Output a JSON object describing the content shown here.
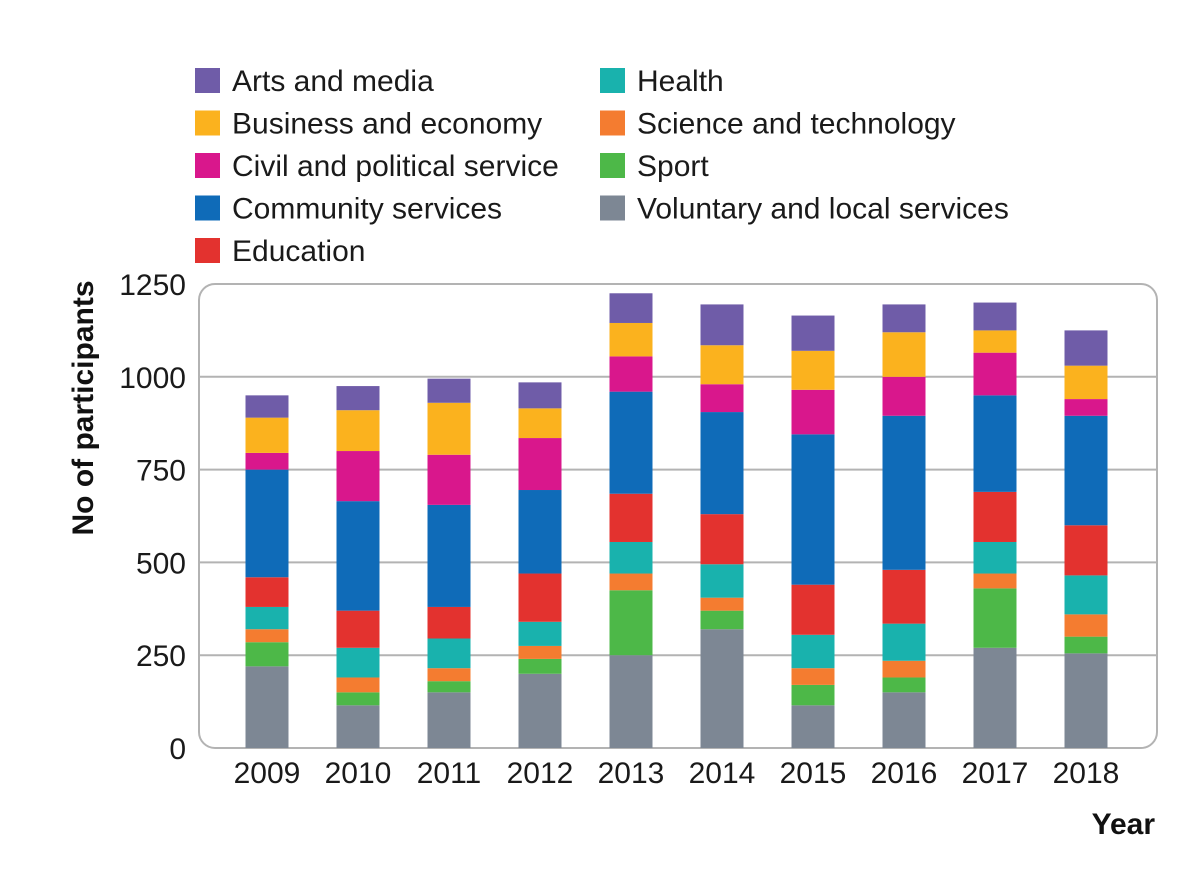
{
  "chart_data": {
    "type": "bar",
    "stacked": true,
    "categories": [
      "2009",
      "2010",
      "2011",
      "2012",
      "2013",
      "2014",
      "2015",
      "2016",
      "2017",
      "2018"
    ],
    "xlabel": "Year",
    "ylabel": "No of participants",
    "ylim": [
      0,
      1250
    ],
    "yticks": [
      0,
      250,
      500,
      750,
      1000,
      1250
    ],
    "grid": true,
    "legend_position": "top",
    "series": [
      {
        "name": "Voluntary and local services",
        "color": "#7d8794",
        "values": [
          220,
          115,
          150,
          200,
          250,
          320,
          115,
          150,
          270,
          255
        ]
      },
      {
        "name": "Sport",
        "color": "#4db848",
        "values": [
          65,
          35,
          30,
          40,
          175,
          50,
          55,
          40,
          160,
          45
        ]
      },
      {
        "name": "Science and technology",
        "color": "#f47c30",
        "values": [
          35,
          40,
          35,
          35,
          45,
          35,
          45,
          45,
          40,
          60
        ]
      },
      {
        "name": "Health",
        "color": "#19b2ad",
        "values": [
          60,
          80,
          80,
          65,
          85,
          90,
          90,
          100,
          85,
          105
        ]
      },
      {
        "name": "Education",
        "color": "#e3322f",
        "values": [
          80,
          100,
          85,
          130,
          130,
          135,
          135,
          145,
          135,
          135
        ]
      },
      {
        "name": "Community services",
        "color": "#0f6bb8",
        "values": [
          290,
          295,
          275,
          225,
          275,
          275,
          405,
          415,
          260,
          295
        ]
      },
      {
        "name": "Civil and political service",
        "color": "#d9178c",
        "values": [
          45,
          135,
          135,
          140,
          95,
          75,
          120,
          105,
          115,
          45
        ]
      },
      {
        "name": "Business and economy",
        "color": "#fbb21e",
        "values": [
          95,
          110,
          140,
          80,
          90,
          105,
          105,
          120,
          60,
          90
        ]
      },
      {
        "name": "Arts and media",
        "color": "#6f5ca8",
        "values": [
          60,
          65,
          65,
          70,
          80,
          110,
          95,
          75,
          75,
          95
        ]
      }
    ],
    "legend_order": [
      "Arts and media",
      "Business and economy",
      "Civil and political service",
      "Community services",
      "Education",
      "Health",
      "Science and technology",
      "Sport",
      "Voluntary and local services"
    ]
  }
}
